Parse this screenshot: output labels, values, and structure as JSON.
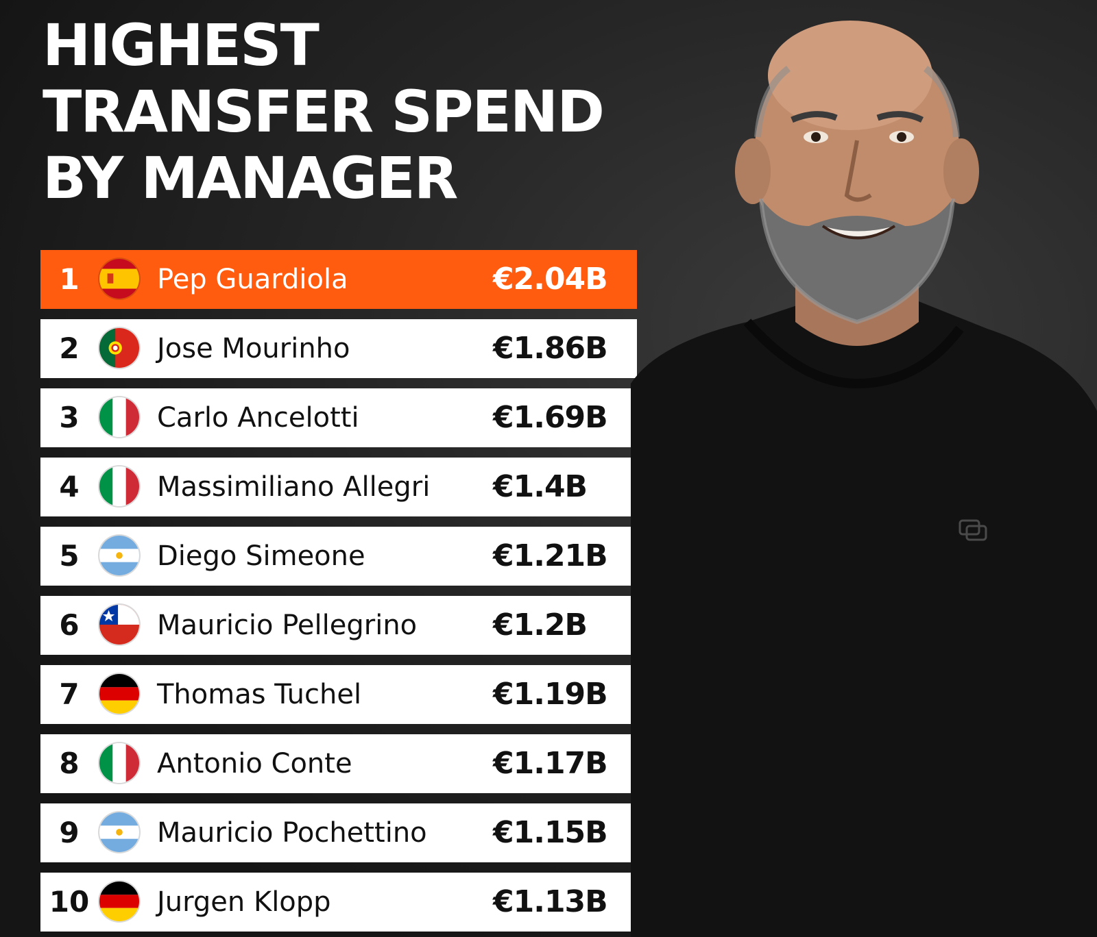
{
  "title": {
    "line1": "HIGHEST",
    "line2": "TRANSFER SPEND",
    "line3": "BY MANAGER"
  },
  "colors": {
    "highlight": "#ff5c10",
    "row_bg": "#ffffff",
    "background": "#1e1e1e"
  },
  "rows": [
    {
      "rank": "1",
      "flag": "spain-flag-icon",
      "name": "Pep Guardiola",
      "amount": "€2.04B"
    },
    {
      "rank": "2",
      "flag": "portugal-flag-icon",
      "name": "Jose Mourinho",
      "amount": "€1.86B"
    },
    {
      "rank": "3",
      "flag": "italy-flag-icon",
      "name": "Carlo Ancelotti",
      "amount": "€1.69B"
    },
    {
      "rank": "4",
      "flag": "italy-flag-icon",
      "name": "Massimiliano Allegri",
      "amount": "€1.4B"
    },
    {
      "rank": "5",
      "flag": "argentina-flag-icon",
      "name": "Diego Simeone",
      "amount": "€1.21B"
    },
    {
      "rank": "6",
      "flag": "chile-flag-icon",
      "name": "Mauricio Pellegrino",
      "amount": "€1.2B"
    },
    {
      "rank": "7",
      "flag": "germany-flag-icon",
      "name": "Thomas Tuchel",
      "amount": "€1.19B"
    },
    {
      "rank": "8",
      "flag": "italy-flag-icon",
      "name": "Antonio Conte",
      "amount": "€1.17B"
    },
    {
      "rank": "9",
      "flag": "argentina-flag-icon",
      "name": "Mauricio Pochettino",
      "amount": "€1.15B"
    },
    {
      "rank": "10",
      "flag": "germany-flag-icon",
      "name": "Jurgen Klopp",
      "amount": "€1.13B"
    }
  ]
}
